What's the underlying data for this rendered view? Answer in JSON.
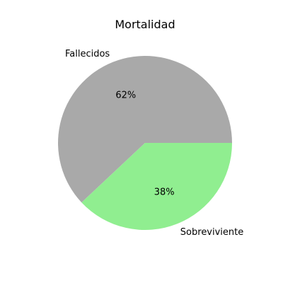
{
  "chart_data": {
    "type": "pie",
    "title": "Mortalidad",
    "labels": [
      "Fallecidos",
      "Sobreviviente"
    ],
    "values": [
      62,
      38
    ],
    "autopct": [
      "62%",
      "38%"
    ],
    "colors": [
      "#a9a9a9",
      "#90ee90"
    ],
    "start_angle_deg": 0,
    "direction": "counterclockwise"
  }
}
